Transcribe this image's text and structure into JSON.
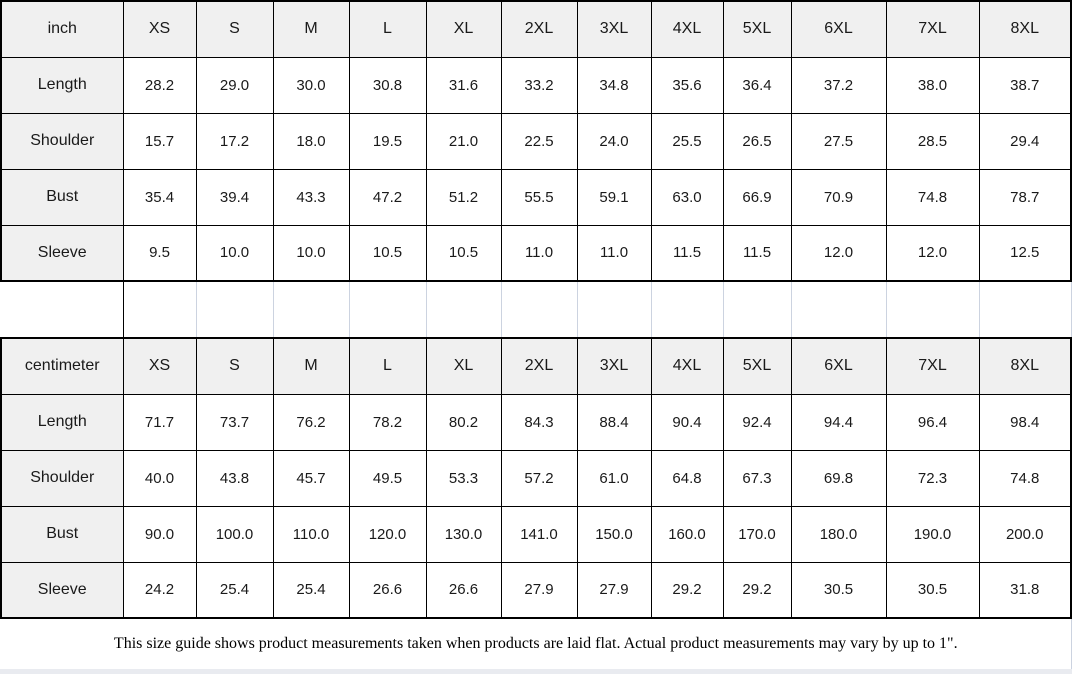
{
  "colors": {
    "header_bg": "#f0f0f0",
    "grid_dark": "#000000",
    "grid_light": "#ccd3e0",
    "text": "#1a1a1a"
  },
  "size_labels": [
    "XS",
    "S",
    "M",
    "L",
    "XL",
    "2XL",
    "3XL",
    "4XL",
    "5XL",
    "6XL",
    "7XL",
    "8XL"
  ],
  "sections": [
    {
      "unit": "inch",
      "rows": [
        {
          "label": "Length",
          "values": [
            "28.2",
            "29.0",
            "30.0",
            "30.8",
            "31.6",
            "33.2",
            "34.8",
            "35.6",
            "36.4",
            "37.2",
            "38.0",
            "38.7"
          ]
        },
        {
          "label": "Shoulder",
          "values": [
            "15.7",
            "17.2",
            "18.0",
            "19.5",
            "21.0",
            "22.5",
            "24.0",
            "25.5",
            "26.5",
            "27.5",
            "28.5",
            "29.4"
          ]
        },
        {
          "label": "Bust",
          "values": [
            "35.4",
            "39.4",
            "43.3",
            "47.2",
            "51.2",
            "55.5",
            "59.1",
            "63.0",
            "66.9",
            "70.9",
            "74.8",
            "78.7"
          ]
        },
        {
          "label": "Sleeve",
          "values": [
            "9.5",
            "10.0",
            "10.0",
            "10.5",
            "10.5",
            "11.0",
            "11.0",
            "11.5",
            "11.5",
            "12.0",
            "12.0",
            "12.5"
          ]
        }
      ]
    },
    {
      "unit": "centimeter",
      "rows": [
        {
          "label": "Length",
          "values": [
            "71.7",
            "73.7",
            "76.2",
            "78.2",
            "80.2",
            "84.3",
            "88.4",
            "90.4",
            "92.4",
            "94.4",
            "96.4",
            "98.4"
          ]
        },
        {
          "label": "Shoulder",
          "values": [
            "40.0",
            "43.8",
            "45.7",
            "49.5",
            "53.3",
            "57.2",
            "61.0",
            "64.8",
            "67.3",
            "69.8",
            "72.3",
            "74.8"
          ]
        },
        {
          "label": "Bust",
          "values": [
            "90.0",
            "100.0",
            "110.0",
            "120.0",
            "130.0",
            "141.0",
            "150.0",
            "160.0",
            "170.0",
            "180.0",
            "190.0",
            "200.0"
          ]
        },
        {
          "label": "Sleeve",
          "values": [
            "24.2",
            "25.4",
            "25.4",
            "26.6",
            "26.6",
            "27.9",
            "27.9",
            "29.2",
            "29.2",
            "30.5",
            "30.5",
            "31.8"
          ]
        }
      ]
    }
  ],
  "footer": {
    "note": "This size guide shows product measurements taken when products are laid flat. Actual product measurements may vary by up to 1\"."
  }
}
